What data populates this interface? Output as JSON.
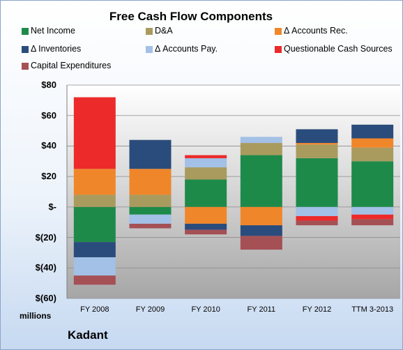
{
  "chart_data": {
    "type": "bar",
    "stacked": true,
    "title": "Free Cash Flow Components",
    "units_label": "millions",
    "categories": [
      "FY 2008",
      "FY 2009",
      "FY 2010",
      "FY 2011",
      "FY 2012",
      "TTM 3-2013"
    ],
    "ylim": [
      -60,
      80
    ],
    "yticks": [
      80,
      60,
      40,
      20,
      0,
      -20,
      -40,
      -60
    ],
    "ytick_labels": [
      "$80",
      "$60",
      "$40",
      "$20",
      "$-",
      "$(20)",
      "$(40)",
      "$(60)"
    ],
    "grid": true,
    "legend_position": "top",
    "series": [
      {
        "name": "Net Income",
        "color": "#1e8a4a",
        "values": [
          -23,
          -5,
          18,
          34,
          32,
          30
        ]
      },
      {
        "name": "D&A",
        "color": "#a99b5e",
        "values": [
          8,
          8,
          8,
          8,
          9,
          9
        ]
      },
      {
        "name": "Δ Accounts Rec.",
        "color": "#f0862a",
        "values": [
          17,
          17,
          -11,
          -12,
          1,
          6
        ]
      },
      {
        "name": "Δ Inventories",
        "color": "#2a4c7c",
        "values": [
          -10,
          19,
          -4,
          -7,
          9,
          9
        ]
      },
      {
        "name": "Δ Accounts Pay.",
        "color": "#a3c0e6",
        "values": [
          -12,
          -6,
          6,
          4,
          -6,
          -5
        ]
      },
      {
        "name": "Questionable Cash Sources",
        "color": "#ec2a2a",
        "values": [
          47,
          0,
          2,
          0,
          -3,
          -3
        ]
      },
      {
        "name": "Capital Expenditures",
        "color": "#a45055",
        "values": [
          -6,
          -3,
          -3,
          -9,
          -3,
          -4
        ]
      }
    ]
  },
  "brand": "Kadant"
}
